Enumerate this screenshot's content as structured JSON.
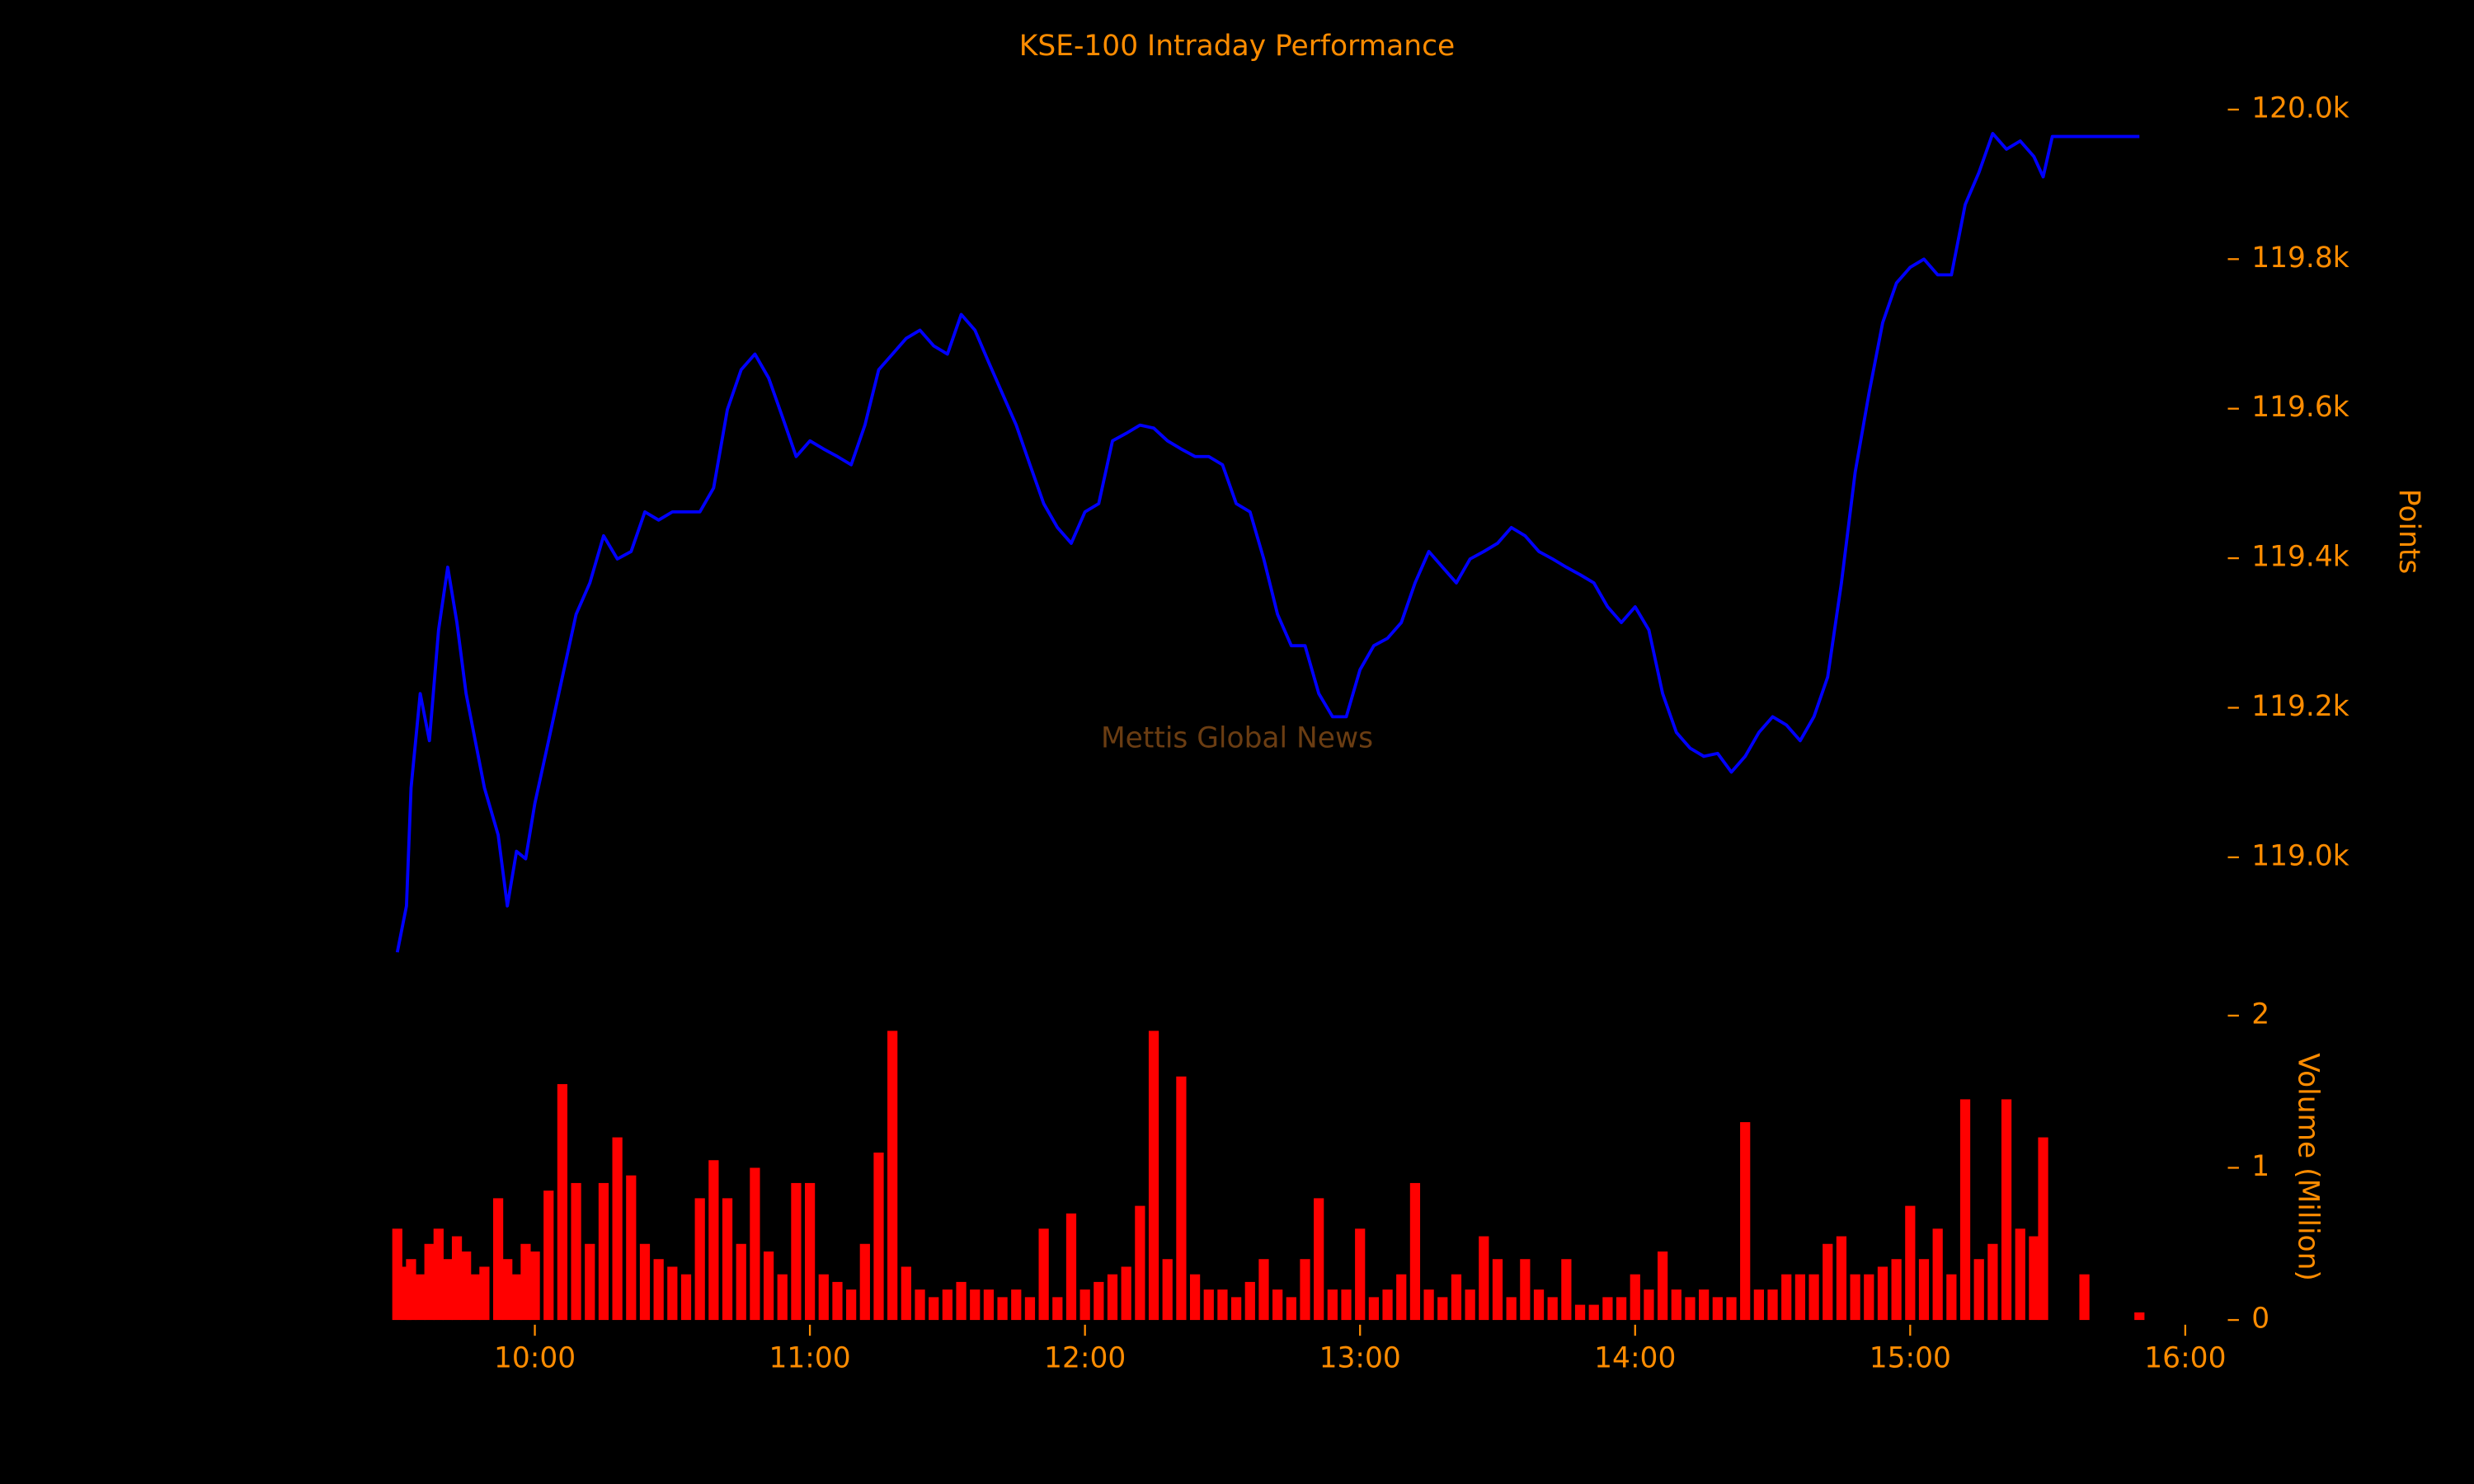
{
  "chart_data": [
    {
      "type": "line",
      "title": "KSE-100 Intraday Performance",
      "annotation": "Mettis Global News",
      "y_label": "Points",
      "color": "#0000ff",
      "x": [
        "09:30",
        "09:32",
        "09:33",
        "09:35",
        "09:37",
        "09:39",
        "09:41",
        "09:43",
        "09:45",
        "09:47",
        "09:49",
        "09:52",
        "09:54",
        "09:56",
        "09:58",
        "10:00",
        "10:03",
        "10:06",
        "10:09",
        "10:12",
        "10:15",
        "10:18",
        "10:21",
        "10:24",
        "10:27",
        "10:30",
        "10:33",
        "10:36",
        "10:39",
        "10:42",
        "10:45",
        "10:48",
        "10:51",
        "10:54",
        "10:57",
        "11:00",
        "11:03",
        "11:06",
        "11:09",
        "11:12",
        "11:15",
        "11:18",
        "11:21",
        "11:24",
        "11:27",
        "11:30",
        "11:33",
        "11:36",
        "11:39",
        "11:42",
        "11:45",
        "11:48",
        "11:51",
        "11:54",
        "11:57",
        "12:00",
        "12:03",
        "12:06",
        "12:09",
        "12:12",
        "12:15",
        "12:18",
        "12:21",
        "12:24",
        "12:27",
        "12:30",
        "12:33",
        "12:36",
        "12:39",
        "12:42",
        "12:45",
        "12:48",
        "12:51",
        "12:54",
        "12:57",
        "13:00",
        "13:03",
        "13:06",
        "13:09",
        "13:12",
        "13:15",
        "13:18",
        "13:21",
        "13:24",
        "13:27",
        "13:30",
        "13:33",
        "13:36",
        "13:39",
        "13:42",
        "13:45",
        "13:48",
        "13:51",
        "13:54",
        "13:57",
        "14:00",
        "14:03",
        "14:06",
        "14:09",
        "14:12",
        "14:15",
        "14:18",
        "14:21",
        "14:24",
        "14:27",
        "14:30",
        "14:33",
        "14:36",
        "14:39",
        "14:42",
        "14:45",
        "14:48",
        "14:51",
        "14:54",
        "14:57",
        "15:00",
        "15:03",
        "15:06",
        "15:09",
        "15:12",
        "15:15",
        "15:18",
        "15:21",
        "15:24",
        "15:27",
        "15:29",
        "15:31",
        "15:50"
      ],
      "values": [
        118873,
        118935,
        119093,
        119219,
        119156,
        119304,
        119388,
        119314,
        119219,
        119156,
        119093,
        119030,
        118935,
        119008,
        118998,
        119072,
        119156,
        119241,
        119325,
        119367,
        119430,
        119399,
        119409,
        119462,
        119451,
        119462,
        119462,
        119462,
        119494,
        119599,
        119652,
        119673,
        119641,
        119589,
        119536,
        119557,
        119546,
        119536,
        119525,
        119578,
        119652,
        119673,
        119694,
        119705,
        119684,
        119673,
        119726,
        119705,
        119662,
        119620,
        119578,
        119525,
        119473,
        119441,
        119420,
        119462,
        119473,
        119557,
        119567,
        119578,
        119574,
        119557,
        119546,
        119536,
        119536,
        119525,
        119473,
        119462,
        119399,
        119325,
        119283,
        119283,
        119219,
        119188,
        119188,
        119251,
        119283,
        119293,
        119314,
        119367,
        119409,
        119388,
        119367,
        119399,
        119409,
        119420,
        119441,
        119430,
        119409,
        119399,
        119388,
        119378,
        119367,
        119335,
        119314,
        119335,
        119304,
        119219,
        119167,
        119146,
        119135,
        119139,
        119114,
        119135,
        119167,
        119188,
        119177,
        119156,
        119188,
        119241,
        119367,
        119515,
        119620,
        119715,
        119768,
        119789,
        119800,
        119779,
        119779,
        119873,
        119916,
        119968,
        119947,
        119958,
        119937,
        119910,
        119964,
        119964
      ],
      "xlim": [
        "09:28",
        "16:00"
      ],
      "ylim": [
        118860,
        120020
      ],
      "yticks": [
        {
          "value": 119000,
          "label": "119.0k"
        },
        {
          "value": 119200,
          "label": "119.2k"
        },
        {
          "value": 119400,
          "label": "119.4k"
        },
        {
          "value": 119600,
          "label": "119.6k"
        },
        {
          "value": 119800,
          "label": "119.8k"
        },
        {
          "value": 120000,
          "label": "120.0k"
        }
      ]
    },
    {
      "type": "bar",
      "y_label": "Volume (Million)",
      "color": "#ff0000",
      "x": [
        "09:30",
        "09:32",
        "09:33",
        "09:35",
        "09:37",
        "09:39",
        "09:41",
        "09:43",
        "09:45",
        "09:47",
        "09:49",
        "09:52",
        "09:54",
        "09:56",
        "09:58",
        "10:00",
        "10:03",
        "10:06",
        "10:09",
        "10:12",
        "10:15",
        "10:18",
        "10:21",
        "10:24",
        "10:27",
        "10:30",
        "10:33",
        "10:36",
        "10:39",
        "10:42",
        "10:45",
        "10:48",
        "10:51",
        "10:54",
        "10:57",
        "11:00",
        "11:03",
        "11:06",
        "11:09",
        "11:12",
        "11:15",
        "11:18",
        "11:21",
        "11:24",
        "11:27",
        "11:30",
        "11:33",
        "11:36",
        "11:39",
        "11:42",
        "11:45",
        "11:48",
        "11:51",
        "11:54",
        "11:57",
        "12:00",
        "12:03",
        "12:06",
        "12:09",
        "12:12",
        "12:15",
        "12:18",
        "12:21",
        "12:24",
        "12:27",
        "12:30",
        "12:33",
        "12:36",
        "12:39",
        "12:42",
        "12:45",
        "12:48",
        "12:51",
        "12:54",
        "12:57",
        "13:00",
        "13:03",
        "13:06",
        "13:09",
        "13:12",
        "13:15",
        "13:18",
        "13:21",
        "13:24",
        "13:27",
        "13:30",
        "13:33",
        "13:36",
        "13:39",
        "13:42",
        "13:45",
        "13:48",
        "13:51",
        "13:54",
        "13:57",
        "14:00",
        "14:03",
        "14:06",
        "14:09",
        "14:12",
        "14:15",
        "14:18",
        "14:21",
        "14:24",
        "14:27",
        "14:30",
        "14:33",
        "14:36",
        "14:39",
        "14:42",
        "14:45",
        "14:48",
        "14:51",
        "14:54",
        "14:57",
        "15:00",
        "15:03",
        "15:06",
        "15:09",
        "15:12",
        "15:15",
        "15:18",
        "15:21",
        "15:24",
        "15:27",
        "15:29",
        "15:38",
        "15:50"
      ],
      "values": [
        0.6,
        0.35,
        0.4,
        0.3,
        0.5,
        0.6,
        0.4,
        0.55,
        0.45,
        0.3,
        0.35,
        0.8,
        0.4,
        0.3,
        0.5,
        0.45,
        0.85,
        1.55,
        0.9,
        0.5,
        0.9,
        1.2,
        0.95,
        0.5,
        0.4,
        0.35,
        0.3,
        0.8,
        1.05,
        0.8,
        0.5,
        1.0,
        0.45,
        0.3,
        0.9,
        0.9,
        0.3,
        0.25,
        0.2,
        0.5,
        1.1,
        1.9,
        0.35,
        0.2,
        0.15,
        0.2,
        0.25,
        0.2,
        0.2,
        0.15,
        0.2,
        0.15,
        0.6,
        0.15,
        0.7,
        0.2,
        0.25,
        0.3,
        0.35,
        0.75,
        1.9,
        0.4,
        1.6,
        0.3,
        0.2,
        0.2,
        0.15,
        0.25,
        0.4,
        0.2,
        0.15,
        0.4,
        0.8,
        0.2,
        0.2,
        0.6,
        0.15,
        0.2,
        0.3,
        0.9,
        0.2,
        0.15,
        0.3,
        0.2,
        0.55,
        0.4,
        0.15,
        0.4,
        0.2,
        0.15,
        0.4,
        0.1,
        0.1,
        0.15,
        0.15,
        0.3,
        0.2,
        0.45,
        0.2,
        0.15,
        0.2,
        0.15,
        0.15,
        1.3,
        0.2,
        0.2,
        0.3,
        0.3,
        0.3,
        0.5,
        0.55,
        0.3,
        0.3,
        0.35,
        0.4,
        0.75,
        0.4,
        0.6,
        0.3,
        1.45,
        0.4,
        0.5,
        1.45,
        0.6,
        0.55,
        1.2,
        0.3,
        0.05
      ],
      "xlim": [
        "09:28",
        "16:00"
      ],
      "ylim": [
        0,
        2
      ],
      "yticks": [
        0,
        1,
        2
      ],
      "xticks": [
        "10:00",
        "11:00",
        "12:00",
        "13:00",
        "14:00",
        "15:00",
        "16:00"
      ]
    }
  ]
}
